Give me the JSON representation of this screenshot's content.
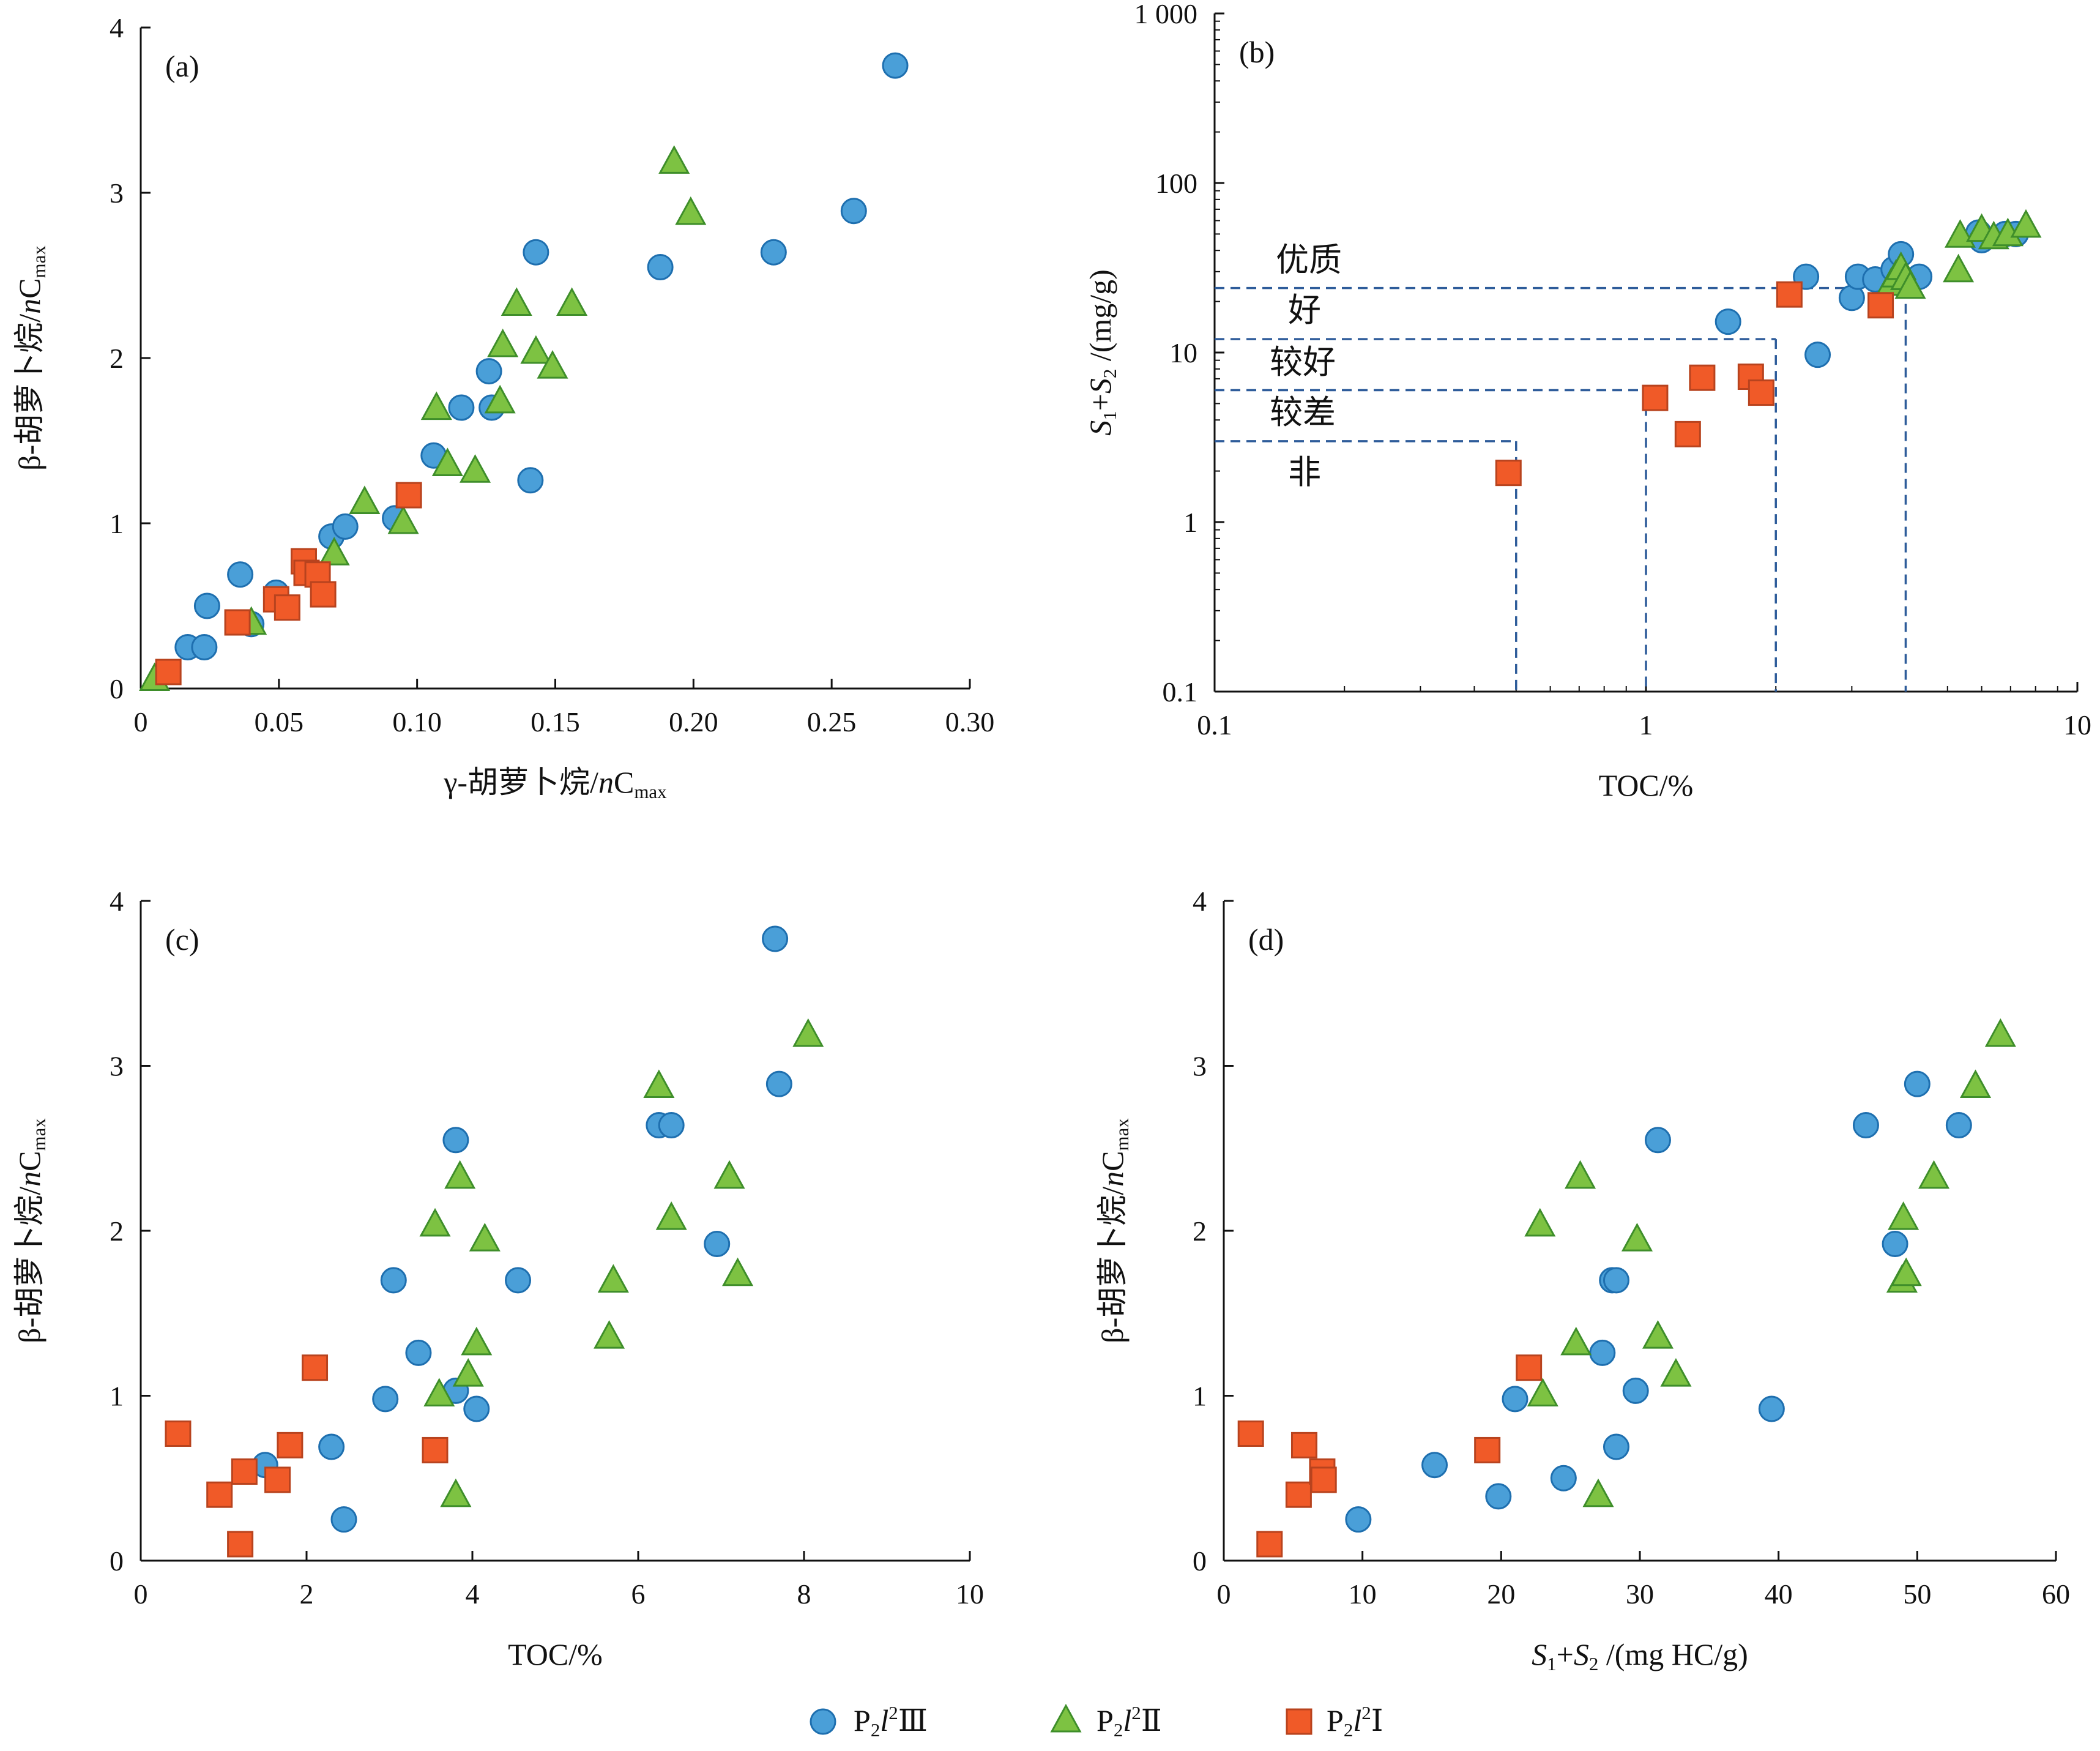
{
  "legend": {
    "items": [
      {
        "key": "III",
        "label": "P₂l²Ⅲ",
        "marker": "circle",
        "color": "#4A9FD8"
      },
      {
        "key": "II",
        "label": "P₂l²Ⅱ",
        "marker": "triangle",
        "color": "#7DC242"
      },
      {
        "key": "I",
        "label": "P₂l²Ⅰ",
        "marker": "square",
        "color": "#F05A28"
      }
    ]
  },
  "colors": {
    "circle_fill": "#4A9FD8",
    "circle_stroke": "#1E6FAF",
    "triangle_fill": "#7DC242",
    "triangle_stroke": "#3E8E2A",
    "square_fill": "#F05A28",
    "square_stroke": "#B8431E",
    "dashed": "#2E5C9A",
    "axis": "#111111"
  },
  "chart_data": [
    {
      "id": "a",
      "type": "scatter",
      "panel_label": "(a)",
      "xlabel": "γ-胡萝卜烷/nC_max",
      "ylabel": "β-胡萝卜烷/nC_max",
      "xlim": [
        0,
        0.3
      ],
      "ylim": [
        0,
        4
      ],
      "xticks": [
        "0",
        "0.05",
        "0.10",
        "0.15",
        "0.20",
        "0.25",
        "0.30"
      ],
      "xtick_values": [
        0,
        0.05,
        0.1,
        0.15,
        0.2,
        0.25,
        0.3
      ],
      "yticks": [
        "0",
        "1",
        "2",
        "3",
        "4"
      ],
      "ytick_values": [
        0,
        1,
        2,
        3,
        4
      ],
      "series": [
        {
          "name": "III",
          "points": [
            [
              0.017,
              0.25
            ],
            [
              0.023,
              0.25
            ],
            [
              0.024,
              0.5
            ],
            [
              0.036,
              0.69
            ],
            [
              0.04,
              0.39
            ],
            [
              0.049,
              0.58
            ],
            [
              0.069,
              0.92
            ],
            [
              0.074,
              0.98
            ],
            [
              0.092,
              1.03
            ],
            [
              0.106,
              1.41
            ],
            [
              0.116,
              1.7
            ],
            [
              0.126,
              1.92
            ],
            [
              0.127,
              1.7
            ],
            [
              0.141,
              1.26
            ],
            [
              0.143,
              2.64
            ],
            [
              0.188,
              2.55
            ],
            [
              0.229,
              2.64
            ],
            [
              0.258,
              2.89
            ],
            [
              0.273,
              3.77
            ]
          ]
        },
        {
          "name": "II",
          "points": [
            [
              0.005,
              0.05
            ],
            [
              0.04,
              0.39
            ],
            [
              0.07,
              0.81
            ],
            [
              0.081,
              1.12
            ],
            [
              0.095,
              1.0
            ],
            [
              0.107,
              1.69
            ],
            [
              0.111,
              1.35
            ],
            [
              0.121,
              1.31
            ],
            [
              0.13,
              1.73
            ],
            [
              0.131,
              2.07
            ],
            [
              0.136,
              2.32
            ],
            [
              0.143,
              2.03
            ],
            [
              0.149,
              1.94
            ],
            [
              0.156,
              2.32
            ],
            [
              0.193,
              3.18
            ],
            [
              0.199,
              2.87
            ]
          ]
        },
        {
          "name": "I",
          "points": [
            [
              0.01,
              0.1
            ],
            [
              0.035,
              0.4
            ],
            [
              0.049,
              0.54
            ],
            [
              0.053,
              0.49
            ],
            [
              0.059,
              0.77
            ],
            [
              0.06,
              0.7
            ],
            [
              0.064,
              0.69
            ],
            [
              0.066,
              0.57
            ],
            [
              0.097,
              1.17
            ]
          ]
        }
      ]
    },
    {
      "id": "b",
      "type": "scatter",
      "panel_label": "(b)",
      "xlabel": "TOC/%",
      "ylabel": "S₁+S₂ /(mg/g)",
      "xscale": "log",
      "yscale": "log",
      "xlim": [
        0.1,
        10
      ],
      "ylim": [
        0.1,
        1000
      ],
      "xticks": [
        "0.1",
        "1",
        "10"
      ],
      "xtick_values": [
        0.1,
        1,
        10
      ],
      "yticks": [
        "0.1",
        "1",
        "10",
        "100",
        "1 000"
      ],
      "ytick_values": [
        0.1,
        1,
        10,
        100,
        1000
      ],
      "grade_labels": [
        "优质",
        "好",
        "较好",
        "较差",
        "非"
      ],
      "thresholds": [
        {
          "toc": 0.5,
          "s": 3
        },
        {
          "toc": 1.0,
          "s": 6
        },
        {
          "toc": 2.0,
          "s": 12
        },
        {
          "toc": 4.0,
          "s": 24
        }
      ],
      "series": [
        {
          "name": "III",
          "points": [
            [
              1.55,
              15.2
            ],
            [
              2.35,
              28
            ],
            [
              2.5,
              9.7
            ],
            [
              3.0,
              21
            ],
            [
              3.1,
              28
            ],
            [
              3.4,
              27
            ],
            [
              3.75,
              31
            ],
            [
              3.9,
              38
            ],
            [
              4.3,
              28
            ],
            [
              5.9,
              51
            ],
            [
              6.0,
              46
            ],
            [
              6.8,
              50
            ],
            [
              7.2,
              50
            ]
          ]
        },
        {
          "name": "II",
          "points": [
            [
              3.7,
              25
            ],
            [
              3.8,
              28
            ],
            [
              3.9,
              31
            ],
            [
              4.0,
              27
            ],
            [
              4.1,
              24
            ],
            [
              5.3,
              30
            ],
            [
              5.35,
              48
            ],
            [
              6.0,
              52
            ],
            [
              6.4,
              47
            ],
            [
              6.9,
              49
            ],
            [
              7.6,
              55
            ]
          ]
        },
        {
          "name": "I",
          "points": [
            [
              0.48,
              1.95
            ],
            [
              1.05,
              5.4
            ],
            [
              1.25,
              3.3
            ],
            [
              1.35,
              7.1
            ],
            [
              1.75,
              7.2
            ],
            [
              1.85,
              5.8
            ],
            [
              2.15,
              22
            ],
            [
              3.5,
              19
            ]
          ]
        }
      ]
    },
    {
      "id": "c",
      "type": "scatter",
      "panel_label": "(c)",
      "xlabel": "TOC/%",
      "ylabel": "β-胡萝卜烷/nC_max",
      "xlim": [
        0,
        10
      ],
      "ylim": [
        0,
        4
      ],
      "xticks": [
        "0",
        "2",
        "4",
        "6",
        "8",
        "10"
      ],
      "xtick_values": [
        0,
        2,
        4,
        6,
        8,
        10
      ],
      "yticks": [
        "0",
        "1",
        "2",
        "3",
        "4"
      ],
      "ytick_values": [
        0,
        1,
        2,
        3,
        4
      ],
      "series": [
        {
          "name": "III",
          "points": [
            [
              1.5,
              0.58
            ],
            [
              2.3,
              0.69
            ],
            [
              2.45,
              0.25
            ],
            [
              2.95,
              0.98
            ],
            [
              3.05,
              1.7
            ],
            [
              3.35,
              1.26
            ],
            [
              3.8,
              1.03
            ],
            [
              3.8,
              2.55
            ],
            [
              4.05,
              0.92
            ],
            [
              4.55,
              1.7
            ],
            [
              6.25,
              2.64
            ],
            [
              6.4,
              2.64
            ],
            [
              6.95,
              1.92
            ],
            [
              7.65,
              3.77
            ],
            [
              7.7,
              2.89
            ]
          ]
        },
        {
          "name": "II",
          "points": [
            [
              3.55,
              2.03
            ],
            [
              3.6,
              1.0
            ],
            [
              3.8,
              0.39
            ],
            [
              3.85,
              2.32
            ],
            [
              3.95,
              1.12
            ],
            [
              4.05,
              1.31
            ],
            [
              4.15,
              1.94
            ],
            [
              5.65,
              1.35
            ],
            [
              5.7,
              1.69
            ],
            [
              6.25,
              2.87
            ],
            [
              6.4,
              2.07
            ],
            [
              7.1,
              2.32
            ],
            [
              7.2,
              1.73
            ],
            [
              8.05,
              3.18
            ]
          ]
        },
        {
          "name": "I",
          "points": [
            [
              0.45,
              0.77
            ],
            [
              0.95,
              0.4
            ],
            [
              1.25,
              0.54
            ],
            [
              1.2,
              0.1
            ],
            [
              1.65,
              0.49
            ],
            [
              1.8,
              0.7
            ],
            [
              2.1,
              1.17
            ],
            [
              3.55,
              0.67
            ]
          ]
        }
      ]
    },
    {
      "id": "d",
      "type": "scatter",
      "panel_label": "(d)",
      "xlabel": "S₁+S₂ /(mg HC/g)",
      "ylabel": "β-胡萝卜烷/nC_max",
      "xlim": [
        0,
        60
      ],
      "ylim": [
        0,
        4
      ],
      "xticks": [
        "0",
        "10",
        "20",
        "30",
        "40",
        "50",
        "60"
      ],
      "xtick_values": [
        0,
        10,
        20,
        30,
        40,
        50,
        60
      ],
      "yticks": [
        "0",
        "1",
        "2",
        "3",
        "4"
      ],
      "ytick_values": [
        0,
        1,
        2,
        3,
        4
      ],
      "series": [
        {
          "name": "III",
          "points": [
            [
              9.7,
              0.25
            ],
            [
              15.2,
              0.58
            ],
            [
              19.8,
              0.39
            ],
            [
              21.0,
              0.98
            ],
            [
              24.5,
              0.5
            ],
            [
              27.3,
              1.26
            ],
            [
              28.0,
              1.7
            ],
            [
              28.3,
              1.7
            ],
            [
              28.3,
              0.69
            ],
            [
              29.7,
              1.03
            ],
            [
              31.3,
              2.55
            ],
            [
              39.5,
              0.92
            ],
            [
              46.3,
              2.64
            ],
            [
              48.4,
              1.92
            ],
            [
              50.0,
              2.89
            ],
            [
              53.0,
              2.64
            ]
          ]
        },
        {
          "name": "II",
          "points": [
            [
              22.8,
              2.03
            ],
            [
              23.0,
              1.0
            ],
            [
              25.4,
              1.31
            ],
            [
              25.7,
              2.32
            ],
            [
              27.0,
              0.39
            ],
            [
              29.8,
              1.94
            ],
            [
              31.3,
              1.35
            ],
            [
              32.6,
              1.12
            ],
            [
              48.9,
              1.69
            ],
            [
              49.0,
              2.07
            ],
            [
              49.2,
              1.73
            ],
            [
              51.2,
              2.32
            ],
            [
              54.2,
              2.87
            ],
            [
              56.0,
              3.18
            ]
          ]
        },
        {
          "name": "I",
          "points": [
            [
              1.95,
              0.77
            ],
            [
              3.3,
              0.1
            ],
            [
              5.4,
              0.4
            ],
            [
              5.8,
              0.7
            ],
            [
              7.1,
              0.54
            ],
            [
              7.2,
              0.49
            ],
            [
              19.0,
              0.67
            ],
            [
              22.0,
              1.17
            ]
          ]
        }
      ]
    }
  ]
}
